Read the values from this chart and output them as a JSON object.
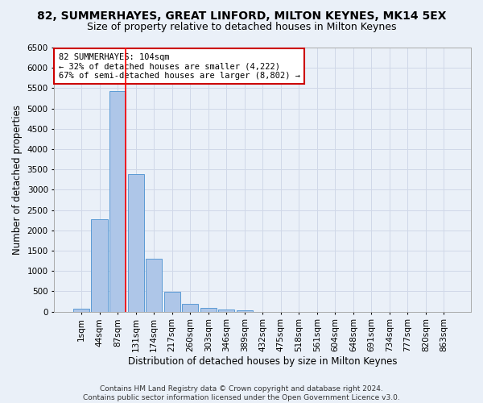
{
  "title": "82, SUMMERHAYES, GREAT LINFORD, MILTON KEYNES, MK14 5EX",
  "subtitle": "Size of property relative to detached houses in Milton Keynes",
  "xlabel": "Distribution of detached houses by size in Milton Keynes",
  "ylabel": "Number of detached properties",
  "footer_line1": "Contains HM Land Registry data © Crown copyright and database right 2024.",
  "footer_line2": "Contains public sector information licensed under the Open Government Licence v3.0.",
  "bar_labels": [
    "1sqm",
    "44sqm",
    "87sqm",
    "131sqm",
    "174sqm",
    "217sqm",
    "260sqm",
    "303sqm",
    "346sqm",
    "389sqm",
    "432sqm",
    "475sqm",
    "518sqm",
    "561sqm",
    "604sqm",
    "648sqm",
    "691sqm",
    "734sqm",
    "777sqm",
    "820sqm",
    "863sqm"
  ],
  "bar_values": [
    75,
    2275,
    5420,
    3380,
    1310,
    480,
    185,
    90,
    50,
    40,
    0,
    0,
    0,
    0,
    0,
    0,
    0,
    0,
    0,
    0,
    0
  ],
  "bar_color": "#aec6e8",
  "bar_edge_color": "#5b9bd5",
  "vline_x_index": 2,
  "vline_color": "#ff0000",
  "annotation_text": "82 SUMMERHAYES: 104sqm\n← 32% of detached houses are smaller (4,222)\n67% of semi-detached houses are larger (8,802) →",
  "annotation_box_edge_color": "#cc0000",
  "annotation_box_face_color": "#ffffff",
  "ylim": [
    0,
    6500
  ],
  "yticks": [
    0,
    500,
    1000,
    1500,
    2000,
    2500,
    3000,
    3500,
    4000,
    4500,
    5000,
    5500,
    6000,
    6500
  ],
  "grid_color": "#d0d8e8",
  "background_color": "#eaf0f8",
  "title_fontsize": 10,
  "subtitle_fontsize": 9,
  "axis_label_fontsize": 8.5,
  "tick_fontsize": 7.5,
  "annotation_fontsize": 7.5,
  "footer_fontsize": 6.5
}
